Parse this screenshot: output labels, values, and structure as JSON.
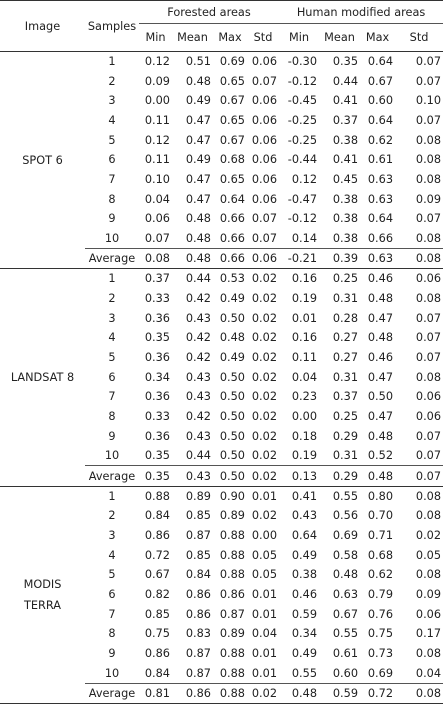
{
  "header": {
    "image": "Image",
    "samples": "Samples",
    "forested": "Forested areas",
    "human": "Human modified areas",
    "stats": [
      "Min",
      "Mean",
      "Max",
      "Std",
      "Min",
      "Mean",
      "Max",
      "Std"
    ]
  },
  "average_label": "Average",
  "groups": [
    {
      "label": [
        "SPOT 6"
      ],
      "rows": [
        [
          "1",
          "0.12",
          "0.51",
          "0.69",
          "0.06",
          "-0.30",
          "0.35",
          "0.64",
          "0.07"
        ],
        [
          "2",
          "0.09",
          "0.48",
          "0.65",
          "0.07",
          "-0.12",
          "0.44",
          "0.67",
          "0.07"
        ],
        [
          "3",
          "0.00",
          "0.49",
          "0.67",
          "0.06",
          "-0.45",
          "0.41",
          "0.60",
          "0.10"
        ],
        [
          "4",
          "0.11",
          "0.47",
          "0.65",
          "0.06",
          "-0.25",
          "0.37",
          "0.64",
          "0.07"
        ],
        [
          "5",
          "0.12",
          "0.47",
          "0.67",
          "0.06",
          "-0.25",
          "0.38",
          "0.62",
          "0.08"
        ],
        [
          "6",
          "0.11",
          "0.49",
          "0.68",
          "0.06",
          "-0.44",
          "0.41",
          "0.61",
          "0.08"
        ],
        [
          "7",
          "0.10",
          "0.47",
          "0.65",
          "0.06",
          "0.12",
          "0.45",
          "0.63",
          "0.08"
        ],
        [
          "8",
          "0.04",
          "0.47",
          "0.64",
          "0.06",
          "-0.47",
          "0.38",
          "0.63",
          "0.09"
        ],
        [
          "9",
          "0.06",
          "0.48",
          "0.66",
          "0.07",
          "-0.12",
          "0.38",
          "0.64",
          "0.07"
        ],
        [
          "10",
          "0.07",
          "0.48",
          "0.66",
          "0.07",
          "0.14",
          "0.38",
          "0.66",
          "0.08"
        ]
      ],
      "average": [
        "0.08",
        "0.48",
        "0.66",
        "0.06",
        "-0.21",
        "0.39",
        "0.63",
        "0.08"
      ]
    },
    {
      "label": [
        "LANDSAT 8"
      ],
      "rows": [
        [
          "1",
          "0.37",
          "0.44",
          "0.53",
          "0.02",
          "0.16",
          "0.25",
          "0.46",
          "0.06"
        ],
        [
          "2",
          "0.33",
          "0.42",
          "0.49",
          "0.02",
          "0.19",
          "0.31",
          "0.48",
          "0.08"
        ],
        [
          "3",
          "0.36",
          "0.43",
          "0.50",
          "0.02",
          "0.01",
          "0.28",
          "0.47",
          "0.07"
        ],
        [
          "4",
          "0.35",
          "0.42",
          "0.48",
          "0.02",
          "0.16",
          "0.27",
          "0.48",
          "0.07"
        ],
        [
          "5",
          "0.36",
          "0.42",
          "0.49",
          "0.02",
          "0.11",
          "0.27",
          "0.46",
          "0.07"
        ],
        [
          "6",
          "0.34",
          "0.43",
          "0.50",
          "0.02",
          "0.04",
          "0.31",
          "0.47",
          "0.08"
        ],
        [
          "7",
          "0.36",
          "0.43",
          "0.50",
          "0.02",
          "0.23",
          "0.37",
          "0.50",
          "0.06"
        ],
        [
          "8",
          "0.33",
          "0.42",
          "0.50",
          "0.02",
          "0.00",
          "0.25",
          "0.47",
          "0.06"
        ],
        [
          "9",
          "0.36",
          "0.43",
          "0.50",
          "0.02",
          "0.18",
          "0.29",
          "0.48",
          "0.07"
        ],
        [
          "10",
          "0.35",
          "0.44",
          "0.50",
          "0.02",
          "0.19",
          "0.31",
          "0.52",
          "0.07"
        ]
      ],
      "average": [
        "0.35",
        "0.43",
        "0.50",
        "0.02",
        "0.13",
        "0.29",
        "0.48",
        "0.07"
      ]
    },
    {
      "label": [
        "MODIS",
        "TERRA"
      ],
      "rows": [
        [
          "1",
          "0.88",
          "0.89",
          "0.90",
          "0.01",
          "0.41",
          "0.55",
          "0.80",
          "0.08"
        ],
        [
          "2",
          "0.84",
          "0.85",
          "0.89",
          "0.02",
          "0.43",
          "0.56",
          "0.70",
          "0.08"
        ],
        [
          "3",
          "0.86",
          "0.87",
          "0.88",
          "0.00",
          "0.64",
          "0.69",
          "0.71",
          "0.02"
        ],
        [
          "4",
          "0.72",
          "0.85",
          "0.88",
          "0.05",
          "0.49",
          "0.58",
          "0.68",
          "0.05"
        ],
        [
          "5",
          "0.67",
          "0.84",
          "0.88",
          "0.05",
          "0.38",
          "0.48",
          "0.62",
          "0.08"
        ],
        [
          "6",
          "0.82",
          "0.86",
          "0.86",
          "0.01",
          "0.46",
          "0.63",
          "0.79",
          "0.09"
        ],
        [
          "7",
          "0.85",
          "0.86",
          "0.87",
          "0.01",
          "0.59",
          "0.67",
          "0.76",
          "0.06"
        ],
        [
          "8",
          "0.75",
          "0.83",
          "0.89",
          "0.04",
          "0.34",
          "0.55",
          "0.75",
          "0.17"
        ],
        [
          "9",
          "0.86",
          "0.87",
          "0.88",
          "0.01",
          "0.49",
          "0.61",
          "0.73",
          "0.08"
        ],
        [
          "10",
          "0.84",
          "0.87",
          "0.88",
          "0.01",
          "0.55",
          "0.60",
          "0.69",
          "0.04"
        ]
      ],
      "average": [
        "0.81",
        "0.86",
        "0.88",
        "0.02",
        "0.48",
        "0.59",
        "0.72",
        "0.08"
      ]
    }
  ]
}
